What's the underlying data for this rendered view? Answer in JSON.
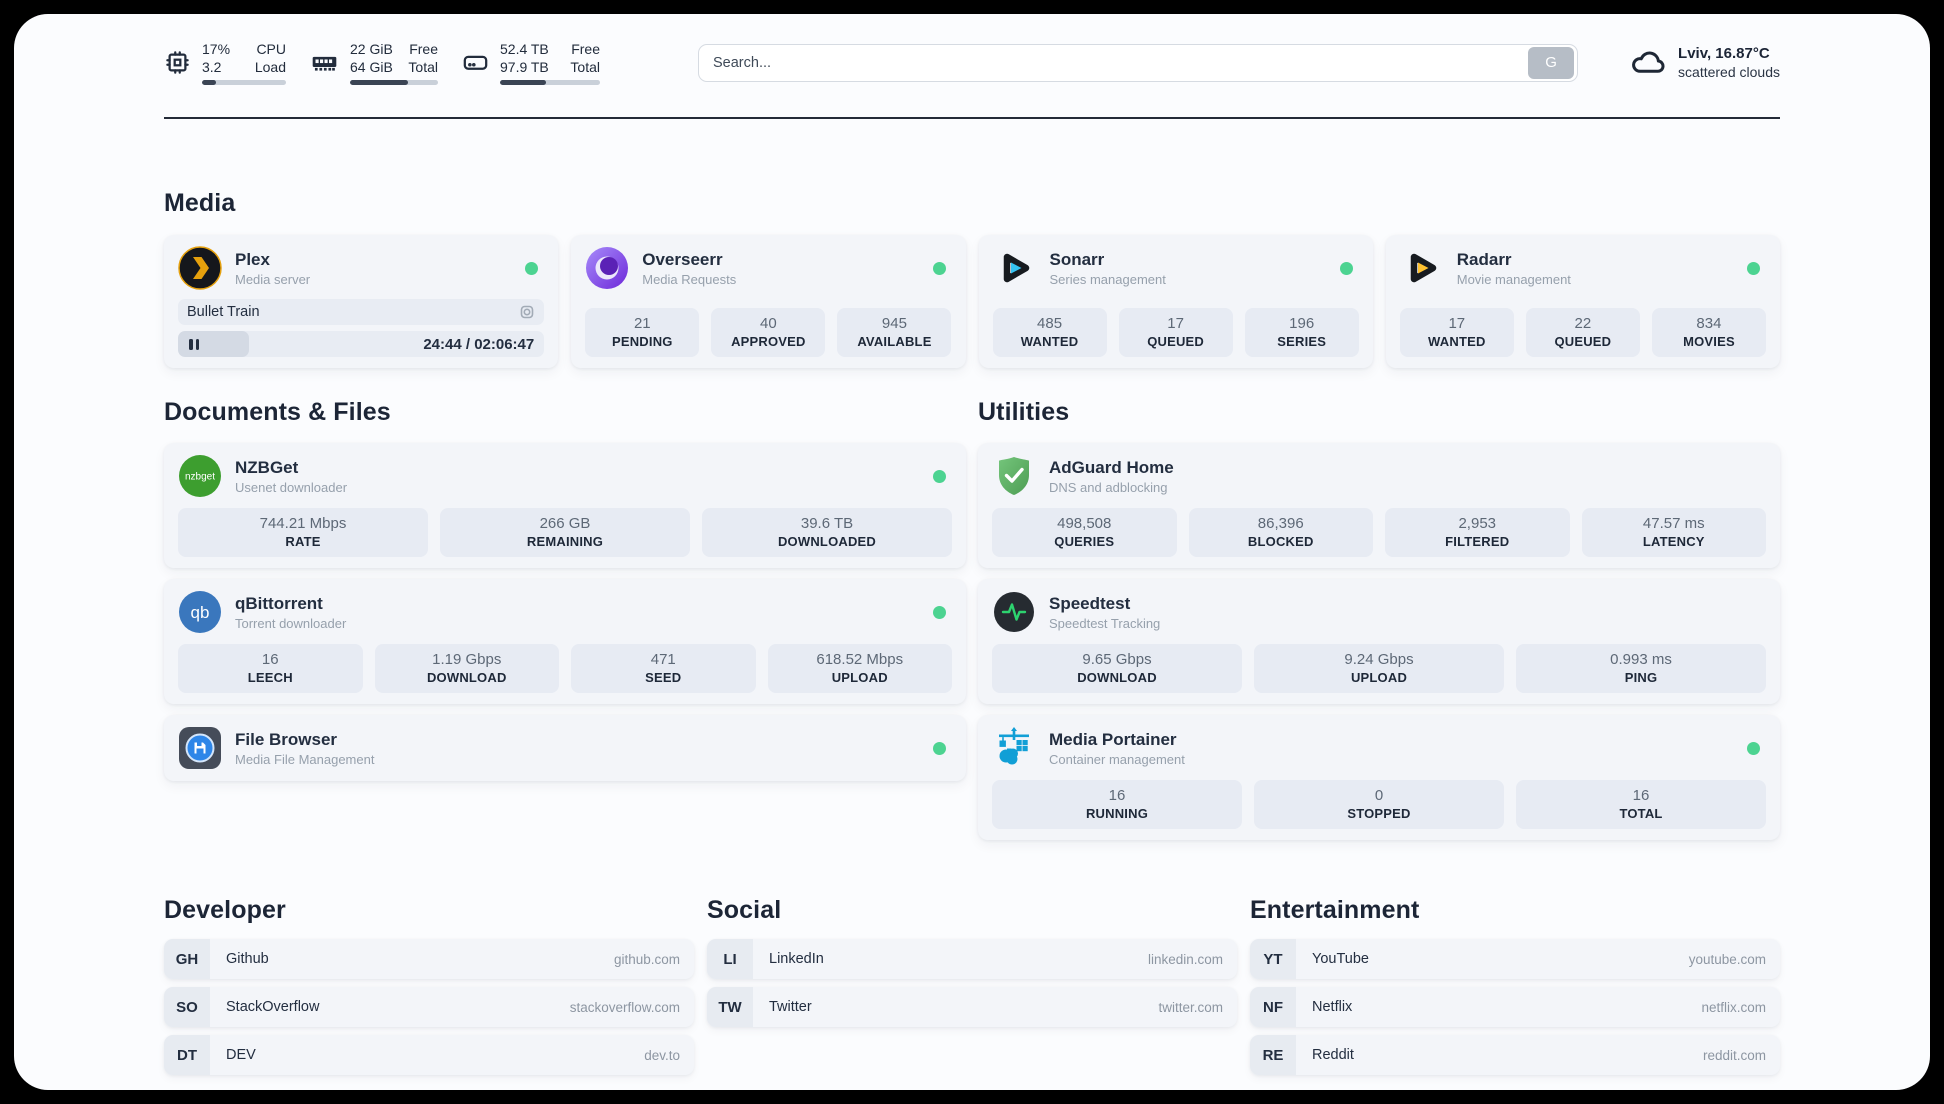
{
  "colors": {
    "status_online": "#4cd391",
    "accent_dark": "#232e40",
    "panel_bg": "#fbfcfe",
    "card_bg": "#f3f5f9"
  },
  "header": {
    "metrics": [
      {
        "icon": "cpu-icon",
        "values": [
          "17%",
          "3.2"
        ],
        "labels": [
          "CPU",
          "Load"
        ],
        "progress": 17
      },
      {
        "icon": "ram-icon",
        "values": [
          "22 GiB",
          "64 GiB"
        ],
        "labels": [
          "Free",
          "Total"
        ],
        "progress": 66
      },
      {
        "icon": "disk-icon",
        "values": [
          "52.4 TB",
          "97.9 TB"
        ],
        "labels": [
          "Free",
          "Total"
        ],
        "progress": 46
      }
    ],
    "search": {
      "placeholder": "Search...",
      "button_label": "G"
    },
    "weather": {
      "location_temp": "Lviv, 16.87°C",
      "condition": "scattered clouds"
    }
  },
  "sections": {
    "media": {
      "title": "Media",
      "plex": {
        "title": "Plex",
        "subtitle": "Media server",
        "now_playing": "Bullet Train",
        "time": "24:44 / 02:06:47",
        "progress_pct": 19.5
      },
      "overseerr": {
        "title": "Overseerr",
        "subtitle": "Media Requests",
        "stats": [
          {
            "value": "21",
            "label": "PENDING"
          },
          {
            "value": "40",
            "label": "APPROVED"
          },
          {
            "value": "945",
            "label": "AVAILABLE"
          }
        ]
      },
      "sonarr": {
        "title": "Sonarr",
        "subtitle": "Series management",
        "stats": [
          {
            "value": "485",
            "label": "WANTED"
          },
          {
            "value": "17",
            "label": "QUEUED"
          },
          {
            "value": "196",
            "label": "SERIES"
          }
        ]
      },
      "radarr": {
        "title": "Radarr",
        "subtitle": "Movie management",
        "stats": [
          {
            "value": "17",
            "label": "WANTED"
          },
          {
            "value": "22",
            "label": "QUEUED"
          },
          {
            "value": "834",
            "label": "MOVIES"
          }
        ]
      }
    },
    "documents": {
      "title": "Documents & Files",
      "nzbget": {
        "title": "NZBGet",
        "subtitle": "Usenet downloader",
        "stats": [
          {
            "value": "744.21 Mbps",
            "label": "RATE"
          },
          {
            "value": "266 GB",
            "label": "REMAINING"
          },
          {
            "value": "39.6 TB",
            "label": "DOWNLOADED"
          }
        ]
      },
      "qbittorrent": {
        "title": "qBittorrent",
        "subtitle": "Torrent downloader",
        "stats": [
          {
            "value": "16",
            "label": "LEECH"
          },
          {
            "value": "1.19 Gbps",
            "label": "DOWNLOAD"
          },
          {
            "value": "471",
            "label": "SEED"
          },
          {
            "value": "618.52 Mbps",
            "label": "UPLOAD"
          }
        ]
      },
      "filebrowser": {
        "title": "File Browser",
        "subtitle": "Media File Management"
      }
    },
    "utilities": {
      "title": "Utilities",
      "adguard": {
        "title": "AdGuard Home",
        "subtitle": "DNS and adblocking",
        "stats": [
          {
            "value": "498,508",
            "label": "QUERIES"
          },
          {
            "value": "86,396",
            "label": "BLOCKED"
          },
          {
            "value": "2,953",
            "label": "FILTERED"
          },
          {
            "value": "47.57 ms",
            "label": "LATENCY"
          }
        ]
      },
      "speedtest": {
        "title": "Speedtest",
        "subtitle": "Speedtest Tracking",
        "stats": [
          {
            "value": "9.65 Gbps",
            "label": "DOWNLOAD"
          },
          {
            "value": "9.24 Gbps",
            "label": "UPLOAD"
          },
          {
            "value": "0.993 ms",
            "label": "PING"
          }
        ]
      },
      "portainer": {
        "title": "Media Portainer",
        "subtitle": "Container management",
        "stats": [
          {
            "value": "16",
            "label": "RUNNING"
          },
          {
            "value": "0",
            "label": "STOPPED"
          },
          {
            "value": "16",
            "label": "TOTAL"
          }
        ]
      }
    },
    "developer": {
      "title": "Developer",
      "links": [
        {
          "tag": "GH",
          "name": "Github",
          "url": "github.com"
        },
        {
          "tag": "SO",
          "name": "StackOverflow",
          "url": "stackoverflow.com"
        },
        {
          "tag": "DT",
          "name": "DEV",
          "url": "dev.to"
        }
      ]
    },
    "social": {
      "title": "Social",
      "links": [
        {
          "tag": "LI",
          "name": "LinkedIn",
          "url": "linkedin.com"
        },
        {
          "tag": "TW",
          "name": "Twitter",
          "url": "twitter.com"
        }
      ]
    },
    "entertainment": {
      "title": "Entertainment",
      "links": [
        {
          "tag": "YT",
          "name": "YouTube",
          "url": "youtube.com"
        },
        {
          "tag": "NF",
          "name": "Netflix",
          "url": "netflix.com"
        },
        {
          "tag": "RE",
          "name": "Reddit",
          "url": "reddit.com"
        }
      ]
    }
  }
}
